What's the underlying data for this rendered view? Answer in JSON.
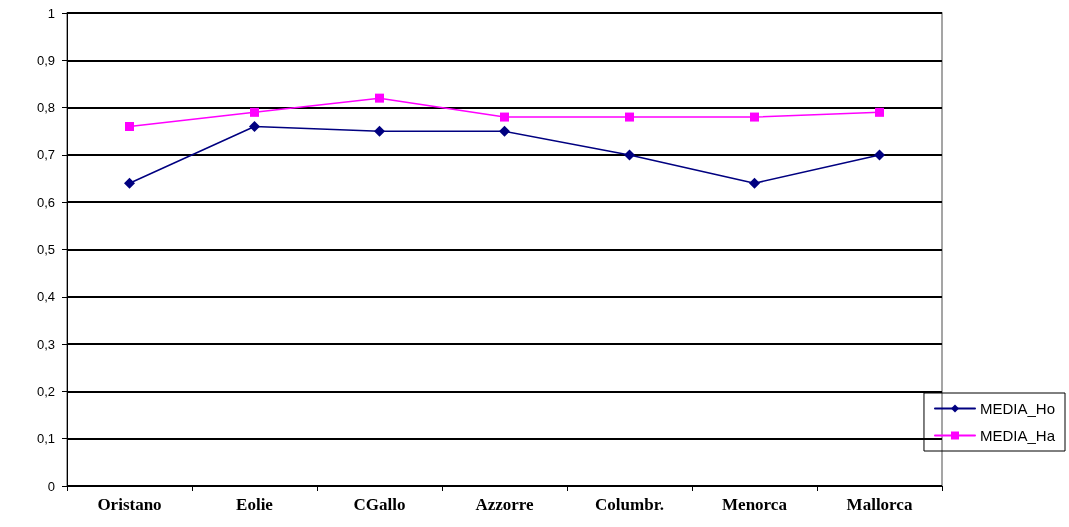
{
  "chart_data": {
    "type": "line",
    "categories": [
      "Oristano",
      "Eolie",
      "CGallo",
      "Azzorre",
      "Columbr.",
      "Menorca",
      "Mallorca"
    ],
    "series": [
      {
        "name": "MEDIA_Ho",
        "color": "#000080",
        "marker": "diamond",
        "values": [
          0.64,
          0.76,
          0.75,
          0.75,
          0.7,
          0.64,
          0.7
        ]
      },
      {
        "name": "MEDIA_Ha",
        "color": "#ff00ff",
        "marker": "square",
        "values": [
          0.76,
          0.79,
          0.82,
          0.78,
          0.78,
          0.78,
          0.79
        ]
      }
    ],
    "ylim": [
      0,
      1
    ],
    "yticks": [
      0,
      {
        "value": 0.1,
        "label": "0,1"
      },
      {
        "value": 0.2,
        "label": "0,2"
      },
      {
        "value": 0.3,
        "label": "0,3"
      },
      {
        "value": 0.4,
        "label": "0,4"
      },
      {
        "value": 0.5,
        "label": "0,5"
      },
      {
        "value": 0.6,
        "label": "0,6"
      },
      {
        "value": 0.7,
        "label": "0,7"
      },
      {
        "value": 0.8,
        "label": "0,8"
      },
      {
        "value": 0.9,
        "label": "0,9"
      },
      1
    ],
    "grid": "y",
    "legend": "bottom right",
    "line_style": "solid"
  }
}
